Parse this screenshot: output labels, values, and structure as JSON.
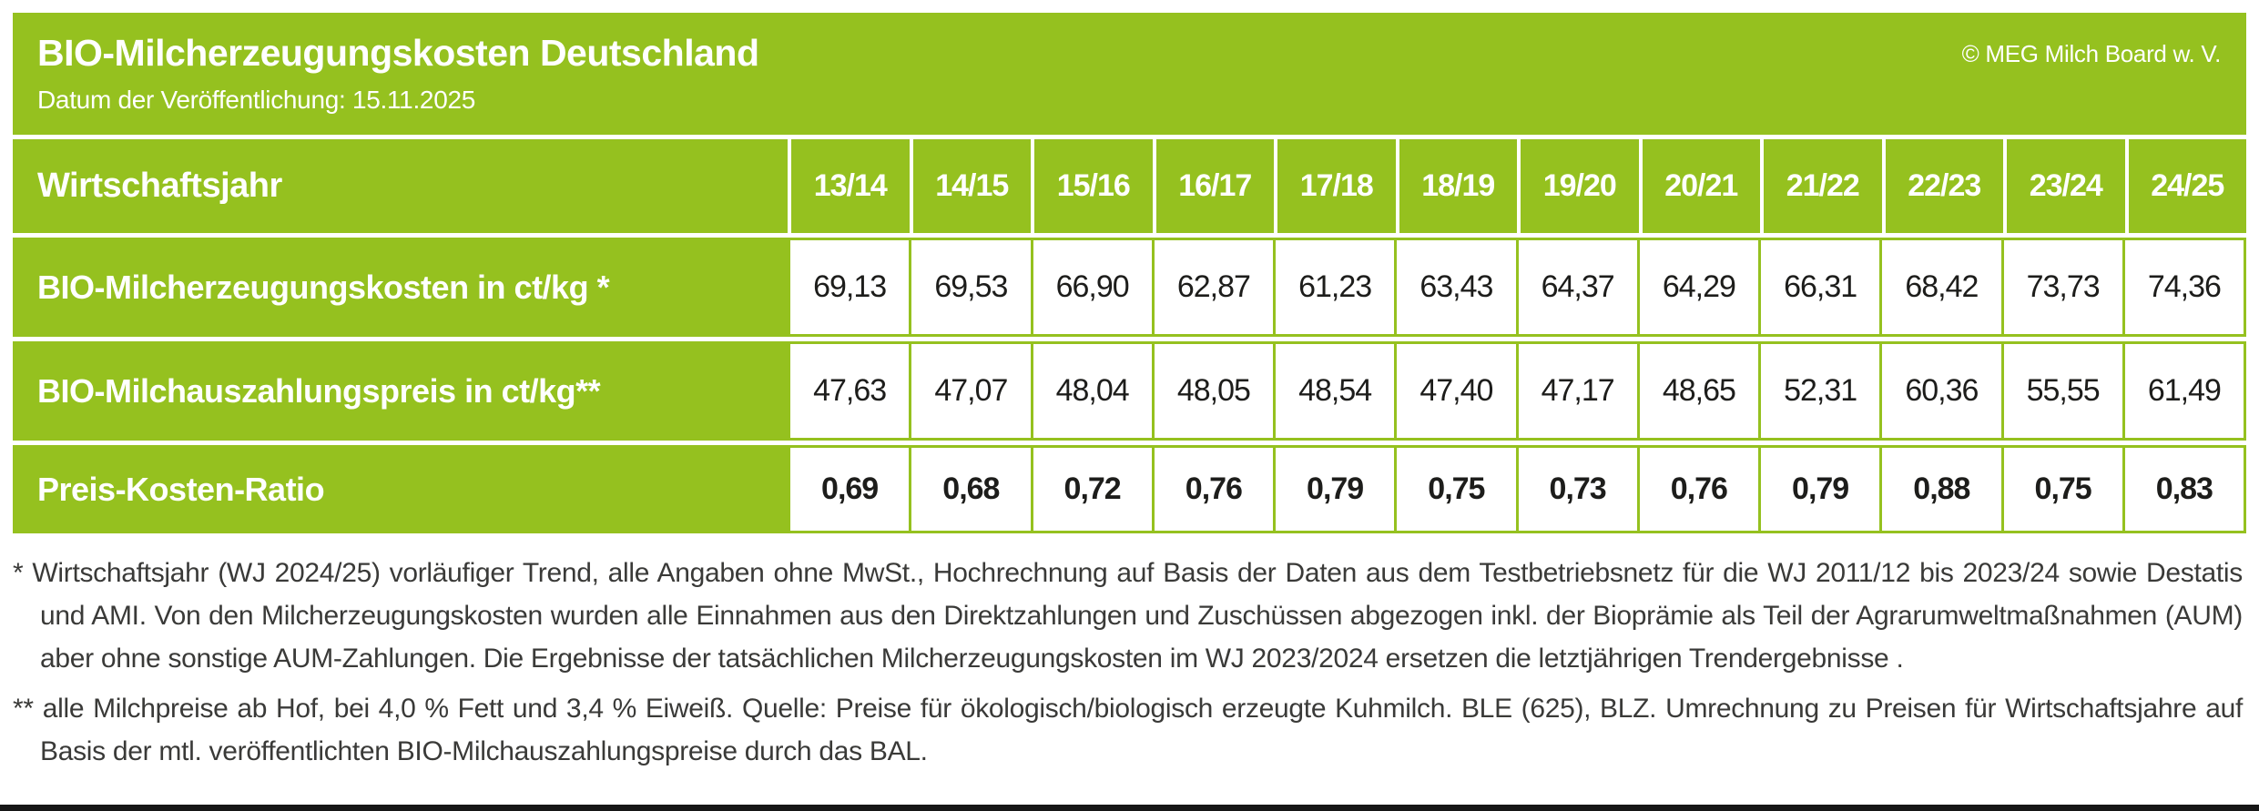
{
  "header": {
    "title": "BIO-Milcherzeugungskosten Deutschland",
    "publication_date": "Datum der Veröffentlichung: 15.11.2025",
    "copyright": "© MEG Milch Board w. V."
  },
  "table": {
    "corner_label": "Wirtschaftsjahr",
    "years": [
      "13/14",
      "14/15",
      "15/16",
      "16/17",
      "17/18",
      "18/19",
      "19/20",
      "20/21",
      "21/22",
      "22/23",
      "23/24",
      "24/25"
    ],
    "rows": [
      {
        "label": "BIO-Milcherzeugungskosten in ct/kg *",
        "values": [
          "69,13",
          "69,53",
          "66,90",
          "62,87",
          "61,23",
          "63,43",
          "64,37",
          "64,29",
          "66,31",
          "68,42",
          "73,73",
          "74,36"
        ]
      },
      {
        "label": "BIO-Milchauszahlungspreis in ct/kg**",
        "values": [
          "47,63",
          "47,07",
          "48,04",
          "48,05",
          "48,54",
          "47,40",
          "47,17",
          "48,65",
          "52,31",
          "60,36",
          "55,55",
          "61,49"
        ]
      },
      {
        "label": "Preis-Kosten-Ratio",
        "values": [
          "0,69",
          "0,68",
          "0,72",
          "0,76",
          "0,79",
          "0,75",
          "0,73",
          "0,76",
          "0,79",
          "0,88",
          "0,75",
          "0,83"
        ]
      }
    ]
  },
  "footnotes": [
    {
      "marker": "*",
      "text": "Wirtschaftsjahr (WJ 2024/25) vorläufiger Trend, alle Angaben ohne MwSt., Hochrechnung auf Basis der Daten aus dem Testbetriebsnetz für die WJ 2011/12 bis 2023/24 sowie Destatis und AMI. Von den Milcherzeugungskosten wurden alle Einnahmen aus den Direktzahlungen und Zuschüssen abgezogen inkl. der Bioprämie als Teil der Agrarumweltmaßnahmen (AUM) aber ohne sonstige AUM-Zahlungen. Die Ergebnisse der tatsächlichen Milcherzeugungskosten im WJ 2023/2024 ersetzen die letztjährigen Trendergebnisse ."
    },
    {
      "marker": "**",
      "text": "alle Milchpreise ab Hof, bei 4,0 % Fett und 3,4 % Eiweiß. Quelle: Preise für ökologisch/biologisch erzeugte Kuhmilch. BLE (625), BLZ. Umrechnung zu Preisen für Wirtschaftsjahre auf Basis der mtl. veröffentlichten BIO-Milchauszahlungspreise durch das BAL."
    }
  ],
  "colors": {
    "brand_green": "#95c11f",
    "value_text": "#1d1d1b",
    "footnote_text": "#3a3a38"
  },
  "chart_data": {
    "type": "table",
    "title": "BIO-Milcherzeugungskosten Deutschland",
    "categories": [
      "13/14",
      "14/15",
      "15/16",
      "16/17",
      "17/18",
      "18/19",
      "19/20",
      "20/21",
      "21/22",
      "22/23",
      "23/24",
      "24/25"
    ],
    "series": [
      {
        "name": "BIO-Milcherzeugungskosten in ct/kg",
        "values": [
          69.13,
          69.53,
          66.9,
          62.87,
          61.23,
          63.43,
          64.37,
          64.29,
          66.31,
          68.42,
          73.73,
          74.36
        ]
      },
      {
        "name": "BIO-Milchauszahlungspreis in ct/kg",
        "values": [
          47.63,
          47.07,
          48.04,
          48.05,
          48.54,
          47.4,
          47.17,
          48.65,
          52.31,
          60.36,
          55.55,
          61.49
        ]
      },
      {
        "name": "Preis-Kosten-Ratio",
        "values": [
          0.69,
          0.68,
          0.72,
          0.76,
          0.79,
          0.75,
          0.73,
          0.76,
          0.79,
          0.88,
          0.75,
          0.83
        ]
      }
    ]
  }
}
